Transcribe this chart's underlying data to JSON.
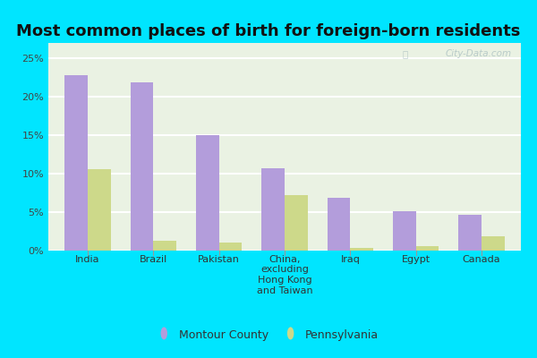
{
  "title": "Most common places of birth for foreign-born residents",
  "categories": [
    "India",
    "Brazil",
    "Pakistan",
    "China,\nexcluding\nHong Kong\nand Taiwan",
    "Iraq",
    "Egypt",
    "Canada"
  ],
  "montour_values": [
    22.8,
    21.9,
    15.0,
    10.7,
    6.9,
    5.1,
    4.6
  ],
  "pennsylvania_values": [
    10.6,
    1.3,
    1.1,
    7.2,
    0.3,
    0.6,
    1.9
  ],
  "montour_color": "#b39ddb",
  "pennsylvania_color": "#cdd98a",
  "bar_width": 0.35,
  "ylim": [
    0,
    27
  ],
  "yticks": [
    0,
    5,
    10,
    15,
    20,
    25
  ],
  "ytick_labels": [
    "0%",
    "5%",
    "10%",
    "15%",
    "20%",
    "25%"
  ],
  "background_outer": "#00e5ff",
  "background_inner_top": "#e8f5e9",
  "background_inner_bottom": "#f0f8e8",
  "grid_color": "#ffffff",
  "title_fontsize": 13,
  "axis_tick_fontsize": 8,
  "legend_labels": [
    "Montour County",
    "Pennsylvania"
  ],
  "watermark": "City-Data.com"
}
